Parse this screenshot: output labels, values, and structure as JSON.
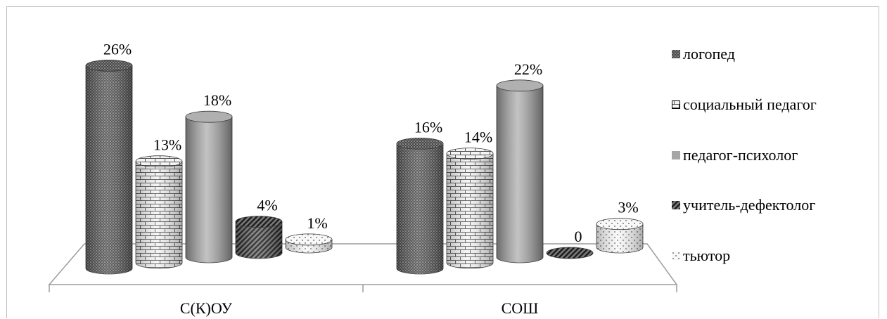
{
  "chart_data": {
    "type": "bar",
    "style": "3d-cylinder",
    "categories": [
      "С(К)ОУ",
      "СОШ"
    ],
    "series": [
      {
        "name": "логопед",
        "values": [
          26,
          16
        ],
        "labels": [
          "26%",
          "16%"
        ],
        "color": "#555555",
        "pattern": "dots-dense"
      },
      {
        "name": "социальный педагог",
        "values": [
          13,
          14
        ],
        "labels": [
          "13%",
          "14%"
        ],
        "color": "#e8e8e8",
        "pattern": "bricks"
      },
      {
        "name": "педагог-психолог",
        "values": [
          18,
          22
        ],
        "labels": [
          "18%",
          "22%"
        ],
        "color": "#a6a6a6",
        "pattern": "solid"
      },
      {
        "name": "учитель-дефектолог",
        "values": [
          4,
          0
        ],
        "labels": [
          "4%",
          "0"
        ],
        "color": "#595959",
        "pattern": "diagonal"
      },
      {
        "name": "тьютор",
        "values": [
          1,
          3
        ],
        "labels": [
          "1%",
          "3%"
        ],
        "color": "#f2f2f2",
        "pattern": "sparse-dots"
      }
    ],
    "ylim": [
      0,
      26
    ],
    "legend_position": "right",
    "grid": false
  }
}
